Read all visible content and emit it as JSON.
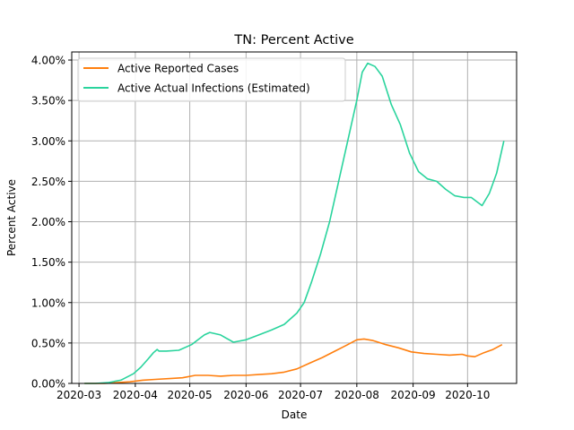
{
  "chart_data": {
    "type": "line",
    "title": "TN: Percent Active",
    "xlabel": "Date",
    "ylabel": "Percent Active",
    "x_ticks": [
      "2020-03",
      "2020-04",
      "2020-05",
      "2020-06",
      "2020-07",
      "2020-08",
      "2020-09",
      "2020-10"
    ],
    "xlim": [
      "2020-02-26",
      "2020-10-28"
    ],
    "ylim": [
      0,
      4.1
    ],
    "y_ticks": [
      0,
      0.5,
      1.0,
      1.5,
      2.0,
      2.5,
      3.0,
      3.5,
      4.0
    ],
    "y_tick_labels": [
      "0.00%",
      "0.50%",
      "1.00%",
      "1.50%",
      "2.00%",
      "2.50%",
      "3.00%",
      "3.50%",
      "4.00%"
    ],
    "grid": true,
    "legend_position": "top-left",
    "series": [
      {
        "name": "Active Reported Cases",
        "color": "#ff7f0e",
        "points": [
          [
            "2020-03-04",
            0.0
          ],
          [
            "2020-03-15",
            0.0
          ],
          [
            "2020-03-22",
            0.01
          ],
          [
            "2020-03-29",
            0.02
          ],
          [
            "2020-04-05",
            0.04
          ],
          [
            "2020-04-12",
            0.05
          ],
          [
            "2020-04-20",
            0.06
          ],
          [
            "2020-04-27",
            0.07
          ],
          [
            "2020-05-04",
            0.1
          ],
          [
            "2020-05-11",
            0.1
          ],
          [
            "2020-05-18",
            0.09
          ],
          [
            "2020-05-25",
            0.1
          ],
          [
            "2020-06-01",
            0.1
          ],
          [
            "2020-06-08",
            0.11
          ],
          [
            "2020-06-15",
            0.12
          ],
          [
            "2020-06-22",
            0.14
          ],
          [
            "2020-06-29",
            0.18
          ],
          [
            "2020-07-06",
            0.25
          ],
          [
            "2020-07-13",
            0.32
          ],
          [
            "2020-07-20",
            0.4
          ],
          [
            "2020-07-27",
            0.48
          ],
          [
            "2020-08-01",
            0.54
          ],
          [
            "2020-08-05",
            0.55
          ],
          [
            "2020-08-10",
            0.53
          ],
          [
            "2020-08-17",
            0.48
          ],
          [
            "2020-08-24",
            0.44
          ],
          [
            "2020-08-31",
            0.39
          ],
          [
            "2020-09-07",
            0.37
          ],
          [
            "2020-09-14",
            0.36
          ],
          [
            "2020-09-21",
            0.35
          ],
          [
            "2020-09-28",
            0.36
          ],
          [
            "2020-10-01",
            0.34
          ],
          [
            "2020-10-05",
            0.33
          ],
          [
            "2020-10-10",
            0.38
          ],
          [
            "2020-10-15",
            0.42
          ],
          [
            "2020-10-20",
            0.48
          ]
        ]
      },
      {
        "name": "Active Actual Infections (Estimated)",
        "color": "#2ad49d",
        "points": [
          [
            "2020-03-04",
            0.0
          ],
          [
            "2020-03-10",
            0.0
          ],
          [
            "2020-03-17",
            0.01
          ],
          [
            "2020-03-24",
            0.04
          ],
          [
            "2020-03-31",
            0.12
          ],
          [
            "2020-04-04",
            0.2
          ],
          [
            "2020-04-08",
            0.3
          ],
          [
            "2020-04-11",
            0.38
          ],
          [
            "2020-04-13",
            0.42
          ],
          [
            "2020-04-14",
            0.4
          ],
          [
            "2020-04-18",
            0.4
          ],
          [
            "2020-04-25",
            0.41
          ],
          [
            "2020-05-02",
            0.48
          ],
          [
            "2020-05-09",
            0.6
          ],
          [
            "2020-05-12",
            0.63
          ],
          [
            "2020-05-18",
            0.6
          ],
          [
            "2020-05-25",
            0.51
          ],
          [
            "2020-06-01",
            0.54
          ],
          [
            "2020-06-08",
            0.6
          ],
          [
            "2020-06-15",
            0.66
          ],
          [
            "2020-06-22",
            0.73
          ],
          [
            "2020-06-29",
            0.87
          ],
          [
            "2020-07-03",
            1.0
          ],
          [
            "2020-07-07",
            1.25
          ],
          [
            "2020-07-12",
            1.6
          ],
          [
            "2020-07-17",
            2.0
          ],
          [
            "2020-07-22",
            2.5
          ],
          [
            "2020-07-27",
            3.0
          ],
          [
            "2020-08-01",
            3.5
          ],
          [
            "2020-08-04",
            3.85
          ],
          [
            "2020-08-07",
            3.96
          ],
          [
            "2020-08-11",
            3.92
          ],
          [
            "2020-08-15",
            3.8
          ],
          [
            "2020-08-20",
            3.45
          ],
          [
            "2020-08-25",
            3.2
          ],
          [
            "2020-08-30",
            2.85
          ],
          [
            "2020-09-04",
            2.62
          ],
          [
            "2020-09-09",
            2.53
          ],
          [
            "2020-09-14",
            2.5
          ],
          [
            "2020-09-19",
            2.4
          ],
          [
            "2020-09-24",
            2.32
          ],
          [
            "2020-09-29",
            2.3
          ],
          [
            "2020-10-03",
            2.3
          ],
          [
            "2020-10-06",
            2.25
          ],
          [
            "2020-10-09",
            2.2
          ],
          [
            "2020-10-13",
            2.35
          ],
          [
            "2020-10-17",
            2.6
          ],
          [
            "2020-10-21",
            3.0
          ]
        ]
      }
    ]
  }
}
